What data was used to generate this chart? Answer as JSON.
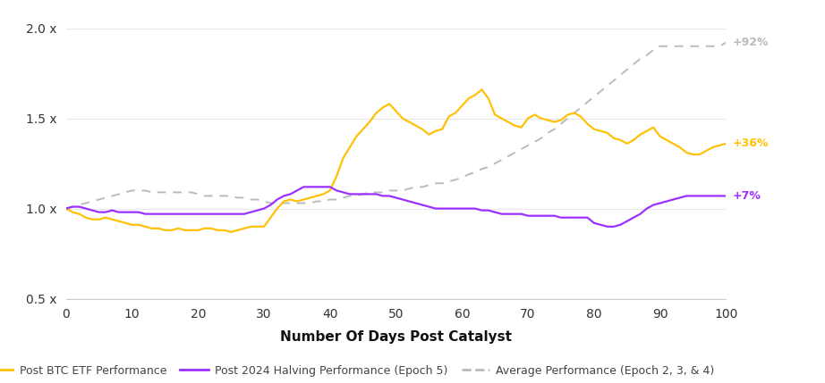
{
  "title": "",
  "xlabel": "Number Of Days Post Catalyst",
  "ylabel": "",
  "xlim": [
    0,
    100
  ],
  "ylim": [
    0.5,
    2.05
  ],
  "yticks": [
    0.5,
    1.0,
    1.5,
    2.0
  ],
  "ytick_labels": [
    "0.5 x",
    "1.0 x",
    "1.5 x",
    "2.0 x"
  ],
  "xticks": [
    0,
    10,
    20,
    30,
    40,
    50,
    60,
    70,
    80,
    90,
    100
  ],
  "background_color": "#ffffff",
  "gold_color": "#FFC107",
  "purple_color": "#9B30FF",
  "gray_color": "#BBBBBB",
  "label_gold": "Post BTC ETF Performance",
  "label_purple": "Post 2024 Halving Performance (Epoch 5)",
  "label_gray": "Average Performance (Epoch 2, 3, & 4)",
  "annotation_gold": "+36%",
  "annotation_purple": "+7%",
  "annotation_gray": "+92%",
  "gold_x": [
    0,
    1,
    2,
    3,
    4,
    5,
    6,
    7,
    8,
    9,
    10,
    11,
    12,
    13,
    14,
    15,
    16,
    17,
    18,
    19,
    20,
    21,
    22,
    23,
    24,
    25,
    26,
    27,
    28,
    29,
    30,
    31,
    32,
    33,
    34,
    35,
    36,
    37,
    38,
    39,
    40,
    41,
    42,
    43,
    44,
    45,
    46,
    47,
    48,
    49,
    50,
    51,
    52,
    53,
    54,
    55,
    56,
    57,
    58,
    59,
    60,
    61,
    62,
    63,
    64,
    65,
    66,
    67,
    68,
    69,
    70,
    71,
    72,
    73,
    74,
    75,
    76,
    77,
    78,
    79,
    80,
    81,
    82,
    83,
    84,
    85,
    86,
    87,
    88,
    89,
    90,
    91,
    92,
    93,
    94,
    95,
    96,
    97,
    98,
    99,
    100
  ],
  "gold_y": [
    1.0,
    0.98,
    0.97,
    0.95,
    0.94,
    0.94,
    0.95,
    0.94,
    0.93,
    0.92,
    0.91,
    0.91,
    0.9,
    0.89,
    0.89,
    0.88,
    0.88,
    0.89,
    0.88,
    0.88,
    0.88,
    0.89,
    0.89,
    0.88,
    0.88,
    0.87,
    0.88,
    0.89,
    0.9,
    0.9,
    0.9,
    0.95,
    1.0,
    1.04,
    1.05,
    1.04,
    1.05,
    1.06,
    1.07,
    1.08,
    1.1,
    1.18,
    1.28,
    1.34,
    1.4,
    1.44,
    1.48,
    1.53,
    1.56,
    1.58,
    1.54,
    1.5,
    1.48,
    1.46,
    1.44,
    1.41,
    1.43,
    1.44,
    1.51,
    1.53,
    1.57,
    1.61,
    1.63,
    1.66,
    1.61,
    1.52,
    1.5,
    1.48,
    1.46,
    1.45,
    1.5,
    1.52,
    1.5,
    1.49,
    1.48,
    1.49,
    1.52,
    1.53,
    1.51,
    1.47,
    1.44,
    1.43,
    1.42,
    1.39,
    1.38,
    1.36,
    1.38,
    1.41,
    1.43,
    1.45,
    1.4,
    1.38,
    1.36,
    1.34,
    1.31,
    1.3,
    1.3,
    1.32,
    1.34,
    1.35,
    1.36
  ],
  "purple_x": [
    0,
    1,
    2,
    3,
    4,
    5,
    6,
    7,
    8,
    9,
    10,
    11,
    12,
    13,
    14,
    15,
    16,
    17,
    18,
    19,
    20,
    21,
    22,
    23,
    24,
    25,
    26,
    27,
    28,
    29,
    30,
    31,
    32,
    33,
    34,
    35,
    36,
    37,
    38,
    39,
    40,
    41,
    42,
    43,
    44,
    45,
    46,
    47,
    48,
    49,
    50,
    51,
    52,
    53,
    54,
    55,
    56,
    57,
    58,
    59,
    60,
    61,
    62,
    63,
    64,
    65,
    66,
    67,
    68,
    69,
    70,
    71,
    72,
    73,
    74,
    75,
    76,
    77,
    78,
    79,
    80,
    81,
    82,
    83,
    84,
    85,
    86,
    87,
    88,
    89,
    90,
    91,
    92,
    93,
    94,
    95,
    96,
    97,
    98,
    99,
    100
  ],
  "purple_y": [
    1.0,
    1.01,
    1.01,
    1.0,
    0.99,
    0.98,
    0.98,
    0.99,
    0.98,
    0.98,
    0.98,
    0.98,
    0.97,
    0.97,
    0.97,
    0.97,
    0.97,
    0.97,
    0.97,
    0.97,
    0.97,
    0.97,
    0.97,
    0.97,
    0.97,
    0.97,
    0.97,
    0.97,
    0.98,
    0.99,
    1.0,
    1.02,
    1.05,
    1.07,
    1.08,
    1.1,
    1.12,
    1.12,
    1.12,
    1.12,
    1.12,
    1.1,
    1.09,
    1.08,
    1.08,
    1.08,
    1.08,
    1.08,
    1.07,
    1.07,
    1.06,
    1.05,
    1.04,
    1.03,
    1.02,
    1.01,
    1.0,
    1.0,
    1.0,
    1.0,
    1.0,
    1.0,
    1.0,
    0.99,
    0.99,
    0.98,
    0.97,
    0.97,
    0.97,
    0.97,
    0.96,
    0.96,
    0.96,
    0.96,
    0.96,
    0.95,
    0.95,
    0.95,
    0.95,
    0.95,
    0.92,
    0.91,
    0.9,
    0.9,
    0.91,
    0.93,
    0.95,
    0.97,
    1.0,
    1.02,
    1.03,
    1.04,
    1.05,
    1.06,
    1.07,
    1.07,
    1.07,
    1.07,
    1.07,
    1.07,
    1.07
  ],
  "gray_x": [
    0,
    1,
    2,
    3,
    4,
    5,
    6,
    7,
    8,
    9,
    10,
    11,
    12,
    13,
    14,
    15,
    16,
    17,
    18,
    19,
    20,
    21,
    22,
    23,
    24,
    25,
    26,
    27,
    28,
    29,
    30,
    31,
    32,
    33,
    34,
    35,
    36,
    37,
    38,
    39,
    40,
    41,
    42,
    43,
    44,
    45,
    46,
    47,
    48,
    49,
    50,
    51,
    52,
    53,
    54,
    55,
    56,
    57,
    58,
    59,
    60,
    61,
    62,
    63,
    64,
    65,
    66,
    67,
    68,
    69,
    70,
    71,
    72,
    73,
    74,
    75,
    76,
    77,
    78,
    79,
    80,
    81,
    82,
    83,
    84,
    85,
    86,
    87,
    88,
    89,
    90,
    91,
    92,
    93,
    94,
    95,
    96,
    97,
    98,
    99,
    100
  ],
  "gray_y": [
    1.0,
    1.01,
    1.02,
    1.03,
    1.04,
    1.05,
    1.06,
    1.07,
    1.08,
    1.09,
    1.1,
    1.1,
    1.1,
    1.09,
    1.09,
    1.09,
    1.09,
    1.09,
    1.09,
    1.09,
    1.08,
    1.07,
    1.07,
    1.07,
    1.07,
    1.07,
    1.06,
    1.06,
    1.05,
    1.05,
    1.04,
    1.03,
    1.03,
    1.03,
    1.03,
    1.03,
    1.03,
    1.03,
    1.04,
    1.04,
    1.05,
    1.05,
    1.06,
    1.07,
    1.07,
    1.08,
    1.09,
    1.09,
    1.09,
    1.1,
    1.1,
    1.1,
    1.11,
    1.12,
    1.12,
    1.13,
    1.14,
    1.14,
    1.15,
    1.16,
    1.17,
    1.19,
    1.2,
    1.22,
    1.23,
    1.25,
    1.27,
    1.29,
    1.31,
    1.33,
    1.35,
    1.37,
    1.39,
    1.42,
    1.44,
    1.47,
    1.5,
    1.53,
    1.56,
    1.59,
    1.62,
    1.65,
    1.68,
    1.71,
    1.74,
    1.77,
    1.8,
    1.83,
    1.85,
    1.88,
    1.9,
    1.9,
    1.9,
    1.9,
    1.9,
    1.9,
    1.9,
    1.9,
    1.9,
    1.9,
    1.92
  ]
}
